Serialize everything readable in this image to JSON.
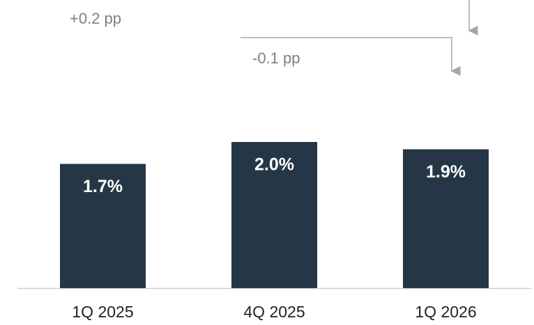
{
  "chart_data": {
    "type": "bar",
    "categories": [
      "1Q 2025",
      "4Q 2025",
      "1Q 2026"
    ],
    "values": [
      1.7,
      2.0,
      1.9
    ],
    "value_labels": [
      "1.7%",
      "2.0%",
      "1.9%"
    ],
    "color": "#253746",
    "annotations": [
      "+0.2 pp",
      "-0.1 pp"
    ]
  }
}
